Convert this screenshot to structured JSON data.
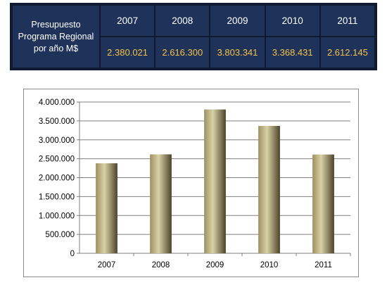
{
  "table": {
    "row_label_lines": [
      "Presupuesto",
      "Programa Regional",
      "por año  M$"
    ],
    "years": [
      "2007",
      "2008",
      "2009",
      "2010",
      "2011"
    ],
    "amounts": [
      "2.380.021",
      "2.616.300",
      "3.803.341",
      "3.368.431",
      "2.612.145"
    ]
  },
  "chart_data": {
    "type": "bar",
    "categories": [
      "2007",
      "2008",
      "2009",
      "2010",
      "2011"
    ],
    "values": [
      2380021,
      2616300,
      3803341,
      3368431,
      2612145
    ],
    "title": "",
    "xlabel": "",
    "ylabel": "",
    "ylim": [
      0,
      4000000
    ],
    "y_ticks": [
      0,
      500000,
      1000000,
      1500000,
      2000000,
      2500000,
      3000000,
      3500000,
      4000000
    ],
    "y_tick_labels": [
      "0",
      "500.000",
      "1.000.000",
      "1.500.000",
      "2.000.000",
      "2.500.000",
      "3.000.000",
      "3.500.000",
      "4.000.000"
    ],
    "grid": true,
    "legend": "none",
    "bar_colors": {
      "light": "#d9d2a6",
      "mid": "#9c9062",
      "dark": "#4c4329"
    }
  }
}
